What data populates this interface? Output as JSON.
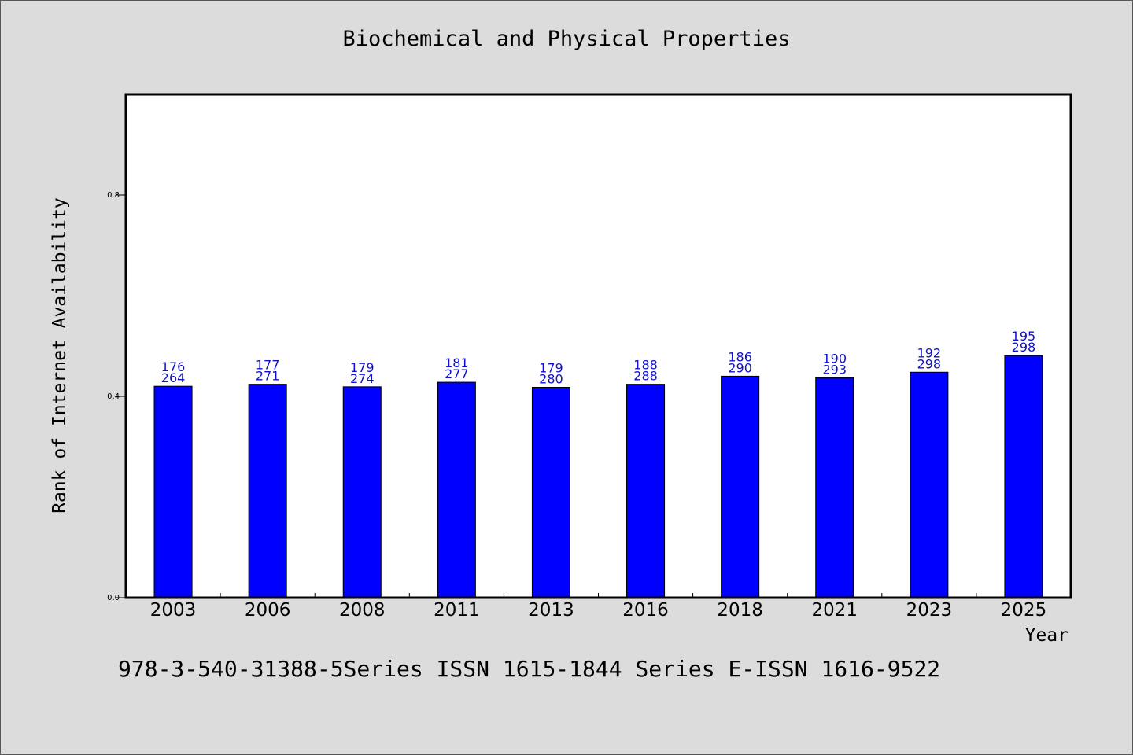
{
  "chart_data": {
    "type": "bar",
    "title": "Biochemical and Physical Properties",
    "xlabel": "Year",
    "ylabel": "Rank of Internet Availability",
    "categories": [
      "2003",
      "2006",
      "2008",
      "2011",
      "2013",
      "2016",
      "2018",
      "2021",
      "2023",
      "2025"
    ],
    "values": [
      0.42,
      0.424,
      0.419,
      0.428,
      0.418,
      0.424,
      0.44,
      0.437,
      0.448,
      0.481
    ],
    "label_top": [
      "176",
      "177",
      "179",
      "181",
      "179",
      "188",
      "186",
      "190",
      "192",
      "195"
    ],
    "label_bottom": [
      "264",
      "271",
      "274",
      "277",
      "280",
      "288",
      "290",
      "293",
      "298",
      "298"
    ],
    "ylim": [
      0,
      1.0
    ],
    "yticks": [
      "0.0",
      "0.4",
      "0.8"
    ],
    "ytick_values": [
      0.0,
      0.4,
      0.8
    ],
    "grid": false,
    "bar_color": "#0000ff"
  },
  "footnote": "978-3-540-31388-5Series ISSN 1615-1844 Series E-ISSN 1616-9522",
  "colors": {
    "background": "#dcdcdc",
    "plot_bg": "#ffffff",
    "value_label": "#1010cc"
  }
}
